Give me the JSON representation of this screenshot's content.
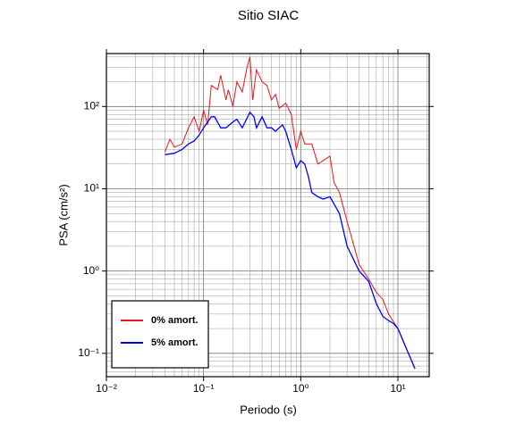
{
  "chart_data": {
    "type": "line",
    "title": "Sitio SIAC",
    "x_label": "Periodo (s)",
    "y_label": "PSA (cm/s²)",
    "log_x": true,
    "log_y": true,
    "grid": true,
    "minor_grid": true,
    "legend": "lower-left",
    "xlim": [
      0.01,
      21
    ],
    "ylim": [
      0.052,
      440
    ],
    "xticks": [
      {
        "value": 0.01,
        "label": "10⁻²"
      },
      {
        "value": 0.1,
        "label": "10⁻¹"
      },
      {
        "value": 1,
        "label": "10⁰"
      },
      {
        "value": 10,
        "label": "10¹"
      }
    ],
    "yticks": [
      {
        "value": 0.1,
        "label": "10⁻¹"
      },
      {
        "value": 1,
        "label": "10⁰"
      },
      {
        "value": 10,
        "label": "10¹"
      },
      {
        "value": 100,
        "label": "10²"
      }
    ],
    "series": [
      {
        "name": "0% amort.",
        "color": "#e8141a",
        "x": [
          0.04,
          0.045,
          0.05,
          0.06,
          0.07,
          0.08,
          0.09,
          0.1,
          0.11,
          0.12,
          0.14,
          0.15,
          0.17,
          0.18,
          0.2,
          0.22,
          0.25,
          0.28,
          0.3,
          0.32,
          0.35,
          0.4,
          0.45,
          0.5,
          0.55,
          0.6,
          0.7,
          0.8,
          0.9,
          1.0,
          1.1,
          1.3,
          1.5,
          1.7,
          2.0,
          2.2,
          2.5,
          3,
          4,
          5,
          6,
          7,
          8,
          10,
          12,
          15
        ],
        "values": [
          28,
          40,
          32,
          35,
          55,
          75,
          50,
          90,
          60,
          180,
          160,
          240,
          120,
          160,
          100,
          200,
          150,
          300,
          400,
          120,
          280,
          200,
          180,
          120,
          140,
          95,
          110,
          80,
          30,
          50,
          35,
          35,
          20,
          22,
          25,
          12,
          9,
          4,
          1.2,
          0.8,
          0.55,
          0.45,
          0.3,
          0.2,
          0.12,
          0.065
        ]
      },
      {
        "name": "5% amort.",
        "color": "#0000ff",
        "x": [
          0.04,
          0.05,
          0.06,
          0.07,
          0.08,
          0.09,
          0.1,
          0.12,
          0.13,
          0.15,
          0.17,
          0.2,
          0.22,
          0.25,
          0.3,
          0.33,
          0.35,
          0.4,
          0.45,
          0.5,
          0.55,
          0.6,
          0.65,
          0.7,
          0.8,
          0.9,
          1.0,
          1.1,
          1.2,
          1.3,
          1.5,
          1.7,
          2.0,
          2.5,
          3,
          4,
          5,
          6,
          7,
          8,
          9,
          10,
          12,
          15
        ],
        "values": [
          26,
          27,
          30,
          35,
          38,
          45,
          55,
          75,
          75,
          55,
          55,
          65,
          70,
          55,
          85,
          75,
          55,
          75,
          55,
          55,
          50,
          55,
          60,
          50,
          30,
          18,
          22,
          20,
          14,
          9,
          8,
          7.5,
          8,
          5,
          2,
          1.0,
          0.75,
          0.4,
          0.28,
          0.25,
          0.23,
          0.2,
          0.12,
          0.065
        ]
      }
    ]
  }
}
